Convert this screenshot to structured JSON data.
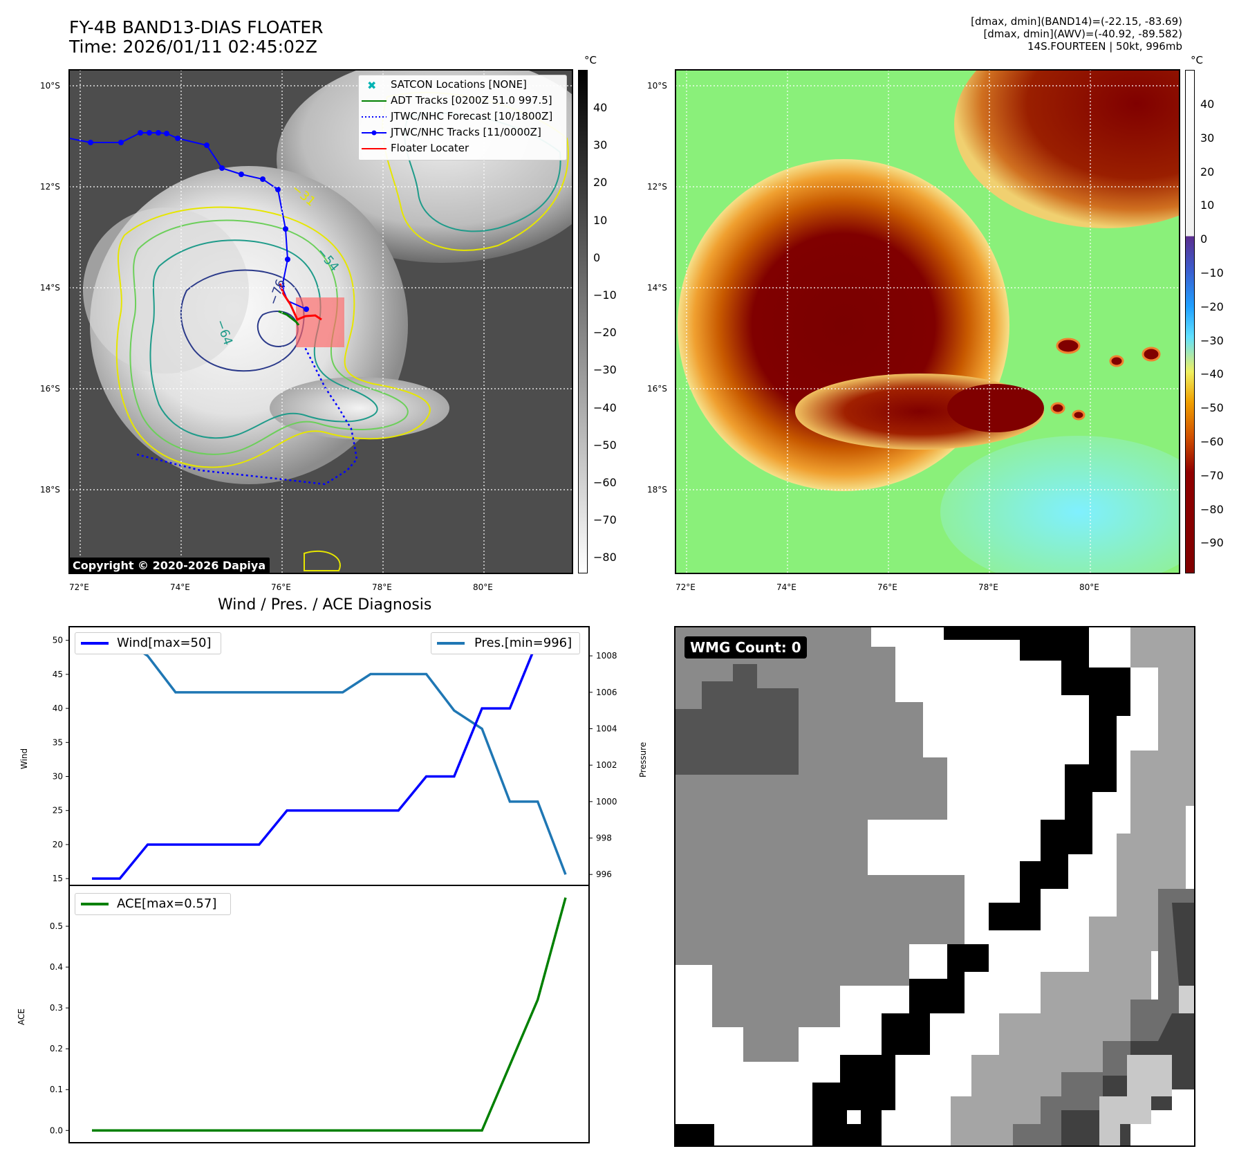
{
  "header": {
    "title_line1": "FY-4B BAND13-DIAS FLOATER",
    "title_line2": "Time: 2026/01/11 02:45:02Z",
    "info_line1": "[dmax, dmin](BAND14)=(-22.15, -83.69)",
    "info_line2": "[dmax, dmin](AWV)=(-40.92, -89.582)",
    "info_line3": "14S.FOURTEEN | 50kt, 996mb"
  },
  "map_axes": {
    "lat_labels": [
      "10°S",
      "12°S",
      "14°S",
      "16°S",
      "18°S"
    ],
    "lon_labels": [
      "72°E",
      "74°E",
      "76°E",
      "78°E",
      "80°E"
    ]
  },
  "colorbar_ir": {
    "unit": "°C",
    "ticks": [
      "40",
      "30",
      "20",
      "10",
      "0",
      "−10",
      "−20",
      "−30",
      "−40",
      "−50",
      "−60",
      "−70",
      "−80"
    ]
  },
  "colorbar_enh": {
    "unit": "°C",
    "ticks": [
      "40",
      "30",
      "20",
      "10",
      "0",
      "−10",
      "−20",
      "−30",
      "−40",
      "−50",
      "−60",
      "−70",
      "−80",
      "−90"
    ]
  },
  "contour_labels": [
    "−31",
    "−54",
    "−64",
    "−76"
  ],
  "legend": {
    "satcon": "SATCON Locations [NONE]",
    "adt": "ADT Tracks [0200Z 51.0 997.5]",
    "forecast": "JTWC/NHC Forecast [10/1800Z]",
    "tracks": "JTWC/NHC Tracks [11/0000Z]",
    "floater": "Floater Locater"
  },
  "copyright": "Copyright © 2020-2026 Dapiya",
  "wmg_label": "WMG Count: 0",
  "colors": {
    "track": "#0000ff",
    "adt": "#008000",
    "floater": "#ff0000",
    "wind": "#0000ff",
    "pressure": "#1f77b4",
    "ace": "#008000"
  },
  "chart_data": [
    {
      "type": "line",
      "title": "Wind / Pres. / ACE Diagnosis",
      "ylabel": "Wind",
      "y2label": "Pressure",
      "ylim": [
        14,
        52
      ],
      "y2lim": [
        995.4,
        1009.6
      ],
      "yticks": [
        15,
        20,
        25,
        30,
        35,
        40,
        45,
        50
      ],
      "y2ticks": [
        996,
        998,
        1000,
        1002,
        1004,
        1006,
        1008
      ],
      "series": [
        {
          "name": "Wind[max=50]",
          "axis": "left",
          "x": [
            0,
            1,
            2,
            3,
            4,
            5,
            6,
            7,
            8,
            9,
            10,
            11,
            12,
            13,
            14,
            15,
            16,
            17
          ],
          "values": [
            15,
            15,
            20,
            20,
            20,
            20,
            20,
            25,
            25,
            25,
            25,
            25,
            30,
            30,
            40,
            40,
            50,
            50
          ]
        },
        {
          "name": "Pres.[min=996]",
          "axis": "right",
          "x": [
            0,
            1,
            2,
            3,
            4,
            5,
            6,
            7,
            8,
            9,
            10,
            11,
            12,
            13,
            14,
            15,
            16,
            17
          ],
          "values": [
            1009,
            1009,
            1008,
            1006,
            1006,
            1006,
            1006,
            1006,
            1006,
            1006,
            1007,
            1007,
            1007,
            1005,
            1004,
            1000,
            1000,
            996
          ]
        }
      ]
    },
    {
      "type": "line",
      "ylabel": "ACE",
      "ylim": [
        -0.03,
        0.6
      ],
      "yticks": [
        "0.0",
        "0.1",
        "0.2",
        "0.3",
        "0.4",
        "0.5"
      ],
      "series": [
        {
          "name": "ACE[max=0.57]",
          "x": [
            0,
            14,
            15,
            16,
            17
          ],
          "values": [
            0,
            0,
            0.16,
            0.32,
            0.57
          ]
        }
      ]
    }
  ]
}
